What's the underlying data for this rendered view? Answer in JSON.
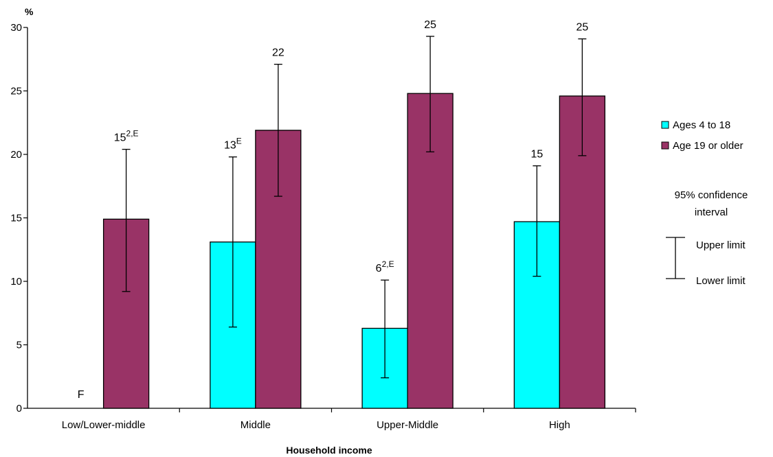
{
  "chart_data": {
    "type": "bar",
    "ylabel": "%",
    "xlabel": "Household income",
    "ylim": [
      0,
      30
    ],
    "yticks": [
      0,
      5,
      10,
      15,
      20,
      25,
      30
    ],
    "categories": [
      "Low/Lower-middle",
      "Middle",
      "Upper-Middle",
      "High"
    ],
    "series": [
      {
        "name": "Ages 4 to 18",
        "color": "#00FFFF",
        "values": [
          null,
          13.1,
          6.3,
          14.7
        ],
        "ci_lower": [
          null,
          6.4,
          2.4,
          10.4
        ],
        "ci_upper": [
          null,
          19.8,
          10.1,
          19.1
        ],
        "labels": [
          {
            "text": "F",
            "sup": ""
          },
          {
            "text": "13",
            "sup": "E"
          },
          {
            "text": "6",
            "sup": "2,E"
          },
          {
            "text": "15",
            "sup": ""
          }
        ]
      },
      {
        "name": "Age 19 or older",
        "color": "#993366",
        "values": [
          14.9,
          21.9,
          24.8,
          24.6
        ],
        "ci_lower": [
          9.2,
          16.7,
          20.2,
          19.9
        ],
        "ci_upper": [
          20.4,
          27.1,
          29.3,
          29.1
        ],
        "labels": [
          {
            "text": "15",
            "sup": "2,E"
          },
          {
            "text": "22",
            "sup": ""
          },
          {
            "text": "25",
            "sup": ""
          },
          {
            "text": "25",
            "sup": ""
          }
        ]
      }
    ],
    "legend": {
      "position": "right",
      "ci_title": [
        "95% confidence",
        "interval"
      ],
      "upper_label": "Upper limit",
      "lower_label": "Lower limit"
    }
  }
}
